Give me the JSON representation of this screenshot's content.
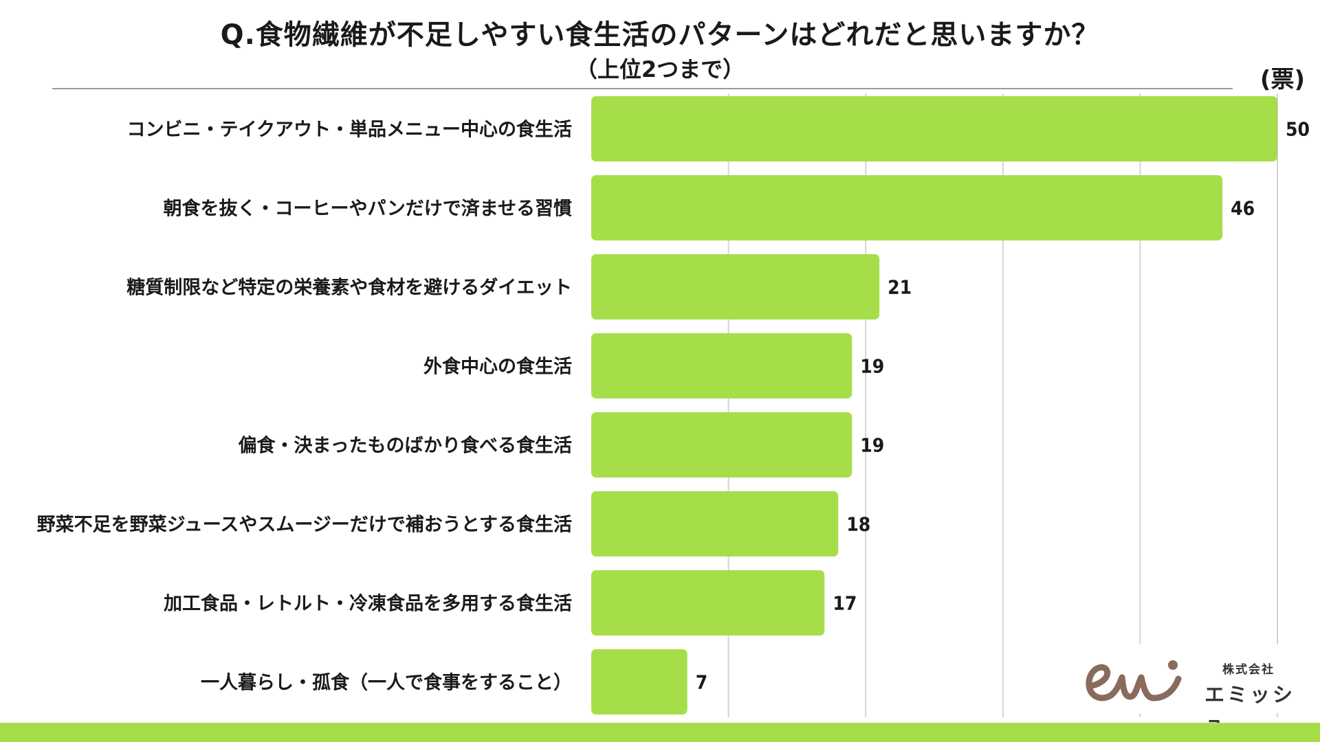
{
  "title": "Q.食物繊維が不足しやすい食生活のパターンはどれだと思いますか？",
  "subtitle": "（上位2つまで）",
  "unit": "(票)",
  "logo": {
    "company_prefix": "株式会社",
    "company_name": "エミッシュ",
    "icon": "emish-logo-mark"
  },
  "colors": {
    "bar": "#a6de4a",
    "grid": "#d4d4d4",
    "band": "#a6de4a",
    "logo": "#8a6a5c"
  },
  "chart_data": {
    "type": "bar",
    "orientation": "horizontal",
    "title": "Q.食物繊維が不足しやすい食生活のパターンはどれだと思いますか？",
    "subtitle": "（上位2つまで）",
    "unit": "(票)",
    "xlim": [
      0,
      50
    ],
    "grid": true,
    "categories": [
      "コンビニ・テイクアウト・単品メニュー中心の食生活",
      "朝食を抜く・コーヒーやパンだけで済ませる習慣",
      "糖質制限など特定の栄養素や食材を避けるダイエット",
      "外食中心の食生活",
      "偏食・決まったものばかり食べる食生活",
      "野菜不足を野菜ジュースやスムージーだけで補おうとする食生活",
      "加工食品・レトルト・冷凍食品を多用する食生活",
      "一人暮らし・孤食（一人で食事をすること）"
    ],
    "values": [
      50,
      46,
      21,
      19,
      19,
      18,
      17,
      7
    ]
  }
}
